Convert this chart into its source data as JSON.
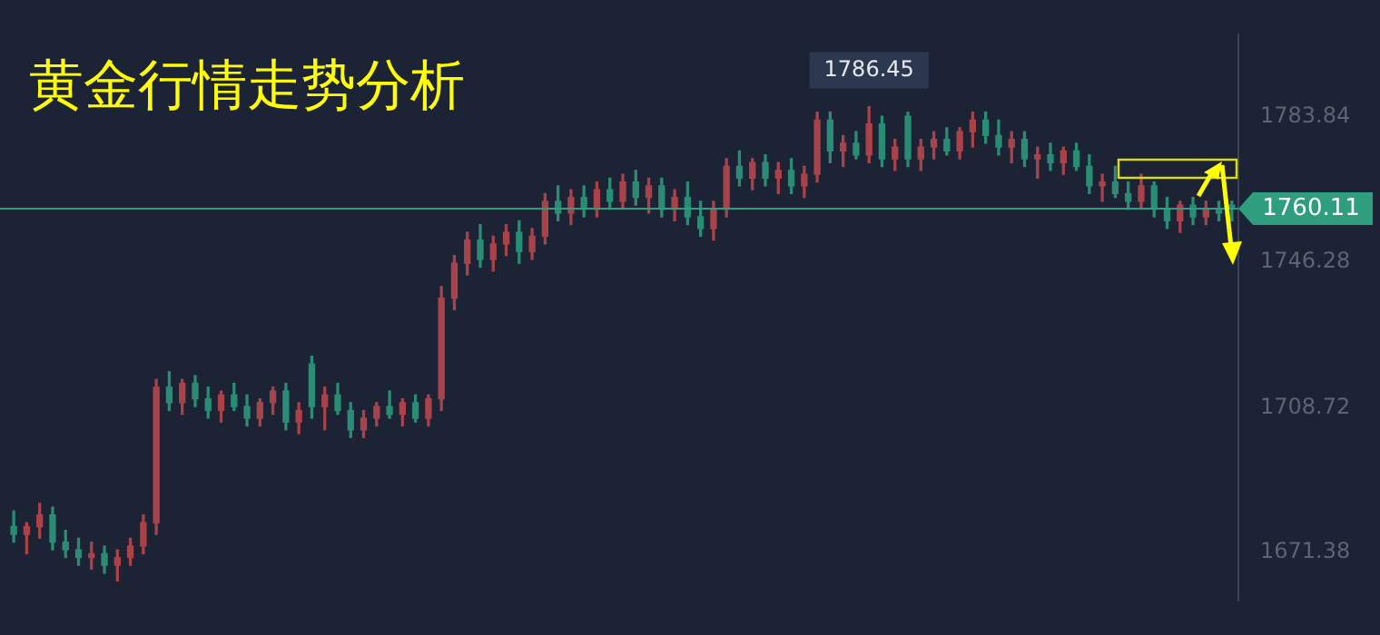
{
  "chart_data": {
    "type": "candlestick",
    "title": "黄金行情走势分析",
    "categories": [
      null,
      null,
      null,
      null,
      null,
      null,
      null,
      null,
      null,
      null,
      null,
      null,
      null,
      null,
      null,
      null,
      null,
      null,
      null,
      null,
      null,
      null,
      null,
      null,
      null,
      null,
      null,
      null,
      null,
      null,
      null,
      null,
      null,
      null,
      null,
      null,
      null,
      null,
      null,
      null,
      null,
      null,
      null,
      null,
      null,
      null,
      null,
      null,
      null,
      null,
      null,
      null,
      null,
      null,
      null,
      null,
      null,
      null,
      null,
      null,
      null,
      null,
      null,
      null,
      null,
      null,
      null,
      null,
      null,
      null,
      null,
      null,
      null,
      null,
      null,
      null,
      null,
      null,
      null,
      null,
      null,
      null,
      null,
      null,
      null,
      null,
      null,
      null,
      null,
      null,
      null,
      null,
      null,
      null,
      null
    ],
    "ohlc": [
      [
        1678,
        1682,
        1674,
        1676
      ],
      [
        1676,
        1679,
        1671,
        1678
      ],
      [
        1678,
        1684,
        1675,
        1681
      ],
      [
        1681,
        1683,
        1672,
        1674
      ],
      [
        1674,
        1677,
        1670,
        1672
      ],
      [
        1672,
        1675,
        1668,
        1670
      ],
      [
        1670,
        1674,
        1667,
        1671
      ],
      [
        1671,
        1673,
        1666,
        1668
      ],
      [
        1668,
        1672,
        1664,
        1670
      ],
      [
        1670,
        1675,
        1668,
        1673
      ],
      [
        1673,
        1681,
        1671,
        1679
      ],
      [
        1679,
        1716,
        1676,
        1714
      ],
      [
        1714,
        1718,
        1708,
        1710
      ],
      [
        1710,
        1716,
        1707,
        1715
      ],
      [
        1715,
        1717,
        1709,
        1711
      ],
      [
        1711,
        1714,
        1706,
        1708
      ],
      [
        1708,
        1713,
        1705,
        1712
      ],
      [
        1712,
        1715,
        1708,
        1709
      ],
      [
        1709,
        1712,
        1704,
        1706
      ],
      [
        1706,
        1711,
        1704,
        1710
      ],
      [
        1710,
        1714,
        1707,
        1713
      ],
      [
        1713,
        1715,
        1703,
        1705
      ],
      [
        1705,
        1710,
        1702,
        1708
      ],
      [
        1720,
        1722,
        1706,
        1709
      ],
      [
        1709,
        1714,
        1703,
        1712
      ],
      [
        1712,
        1715,
        1707,
        1708
      ],
      [
        1708,
        1710,
        1701,
        1703
      ],
      [
        1703,
        1708,
        1701,
        1706
      ],
      [
        1706,
        1710,
        1704,
        1709
      ],
      [
        1709,
        1713,
        1706,
        1707
      ],
      [
        1707,
        1711,
        1704,
        1710
      ],
      [
        1710,
        1712,
        1705,
        1706
      ],
      [
        1706,
        1712,
        1704,
        1711
      ],
      [
        1711,
        1740,
        1708,
        1737
      ],
      [
        1737,
        1748,
        1734,
        1746
      ],
      [
        1746,
        1754,
        1743,
        1752
      ],
      [
        1752,
        1756,
        1745,
        1747
      ],
      [
        1747,
        1753,
        1744,
        1751
      ],
      [
        1751,
        1756,
        1748,
        1754
      ],
      [
        1754,
        1757,
        1746,
        1749
      ],
      [
        1749,
        1755,
        1747,
        1753
      ],
      [
        1753,
        1764,
        1751,
        1762
      ],
      [
        1762,
        1766,
        1757,
        1759
      ],
      [
        1759,
        1765,
        1756,
        1763
      ],
      [
        1763,
        1766,
        1758,
        1760
      ],
      [
        1760,
        1767,
        1758,
        1765
      ],
      [
        1765,
        1768,
        1760,
        1762
      ],
      [
        1762,
        1769,
        1760,
        1767
      ],
      [
        1767,
        1770,
        1761,
        1763
      ],
      [
        1763,
        1768,
        1759,
        1766
      ],
      [
        1766,
        1768,
        1758,
        1760
      ],
      [
        1760,
        1765,
        1757,
        1763
      ],
      [
        1763,
        1767,
        1756,
        1758
      ],
      [
        1758,
        1762,
        1753,
        1755
      ],
      [
        1755,
        1762,
        1752,
        1760
      ],
      [
        1760,
        1773,
        1758,
        1771
      ],
      [
        1771,
        1775,
        1766,
        1768
      ],
      [
        1768,
        1773,
        1765,
        1772
      ],
      [
        1772,
        1774,
        1766,
        1768
      ],
      [
        1768,
        1772,
        1764,
        1770
      ],
      [
        1770,
        1773,
        1764,
        1766
      ],
      [
        1766,
        1771,
        1763,
        1769
      ],
      [
        1769,
        1785,
        1767,
        1783
      ],
      [
        1783,
        1785,
        1772,
        1775
      ],
      [
        1775,
        1779,
        1771,
        1777
      ],
      [
        1777,
        1780,
        1773,
        1774
      ],
      [
        1774,
        1786.45,
        1772,
        1782
      ],
      [
        1782,
        1784,
        1771,
        1773
      ],
      [
        1773,
        1778,
        1770,
        1776
      ],
      [
        1784,
        1785,
        1771,
        1773
      ],
      [
        1773,
        1778,
        1770,
        1776
      ],
      [
        1776,
        1780,
        1773,
        1778
      ],
      [
        1778,
        1781,
        1774,
        1775
      ],
      [
        1775,
        1781,
        1773,
        1780
      ],
      [
        1780,
        1785,
        1776,
        1783
      ],
      [
        1783,
        1785,
        1777,
        1779
      ],
      [
        1779,
        1783,
        1774,
        1776
      ],
      [
        1776,
        1780,
        1772,
        1778
      ],
      [
        1778,
        1780,
        1771,
        1773
      ],
      [
        1773,
        1776,
        1768,
        1774
      ],
      [
        1774,
        1777,
        1770,
        1772
      ],
      [
        1772,
        1776,
        1769,
        1775
      ],
      [
        1775,
        1777,
        1770,
        1771
      ],
      [
        1771,
        1774,
        1764,
        1766
      ],
      [
        1766,
        1769,
        1762,
        1767
      ],
      [
        1767,
        1771,
        1763,
        1764
      ],
      [
        1764,
        1767,
        1760,
        1762
      ],
      [
        1762,
        1769,
        1760,
        1766
      ],
      [
        1766,
        1767,
        1758,
        1760
      ],
      [
        1760,
        1763,
        1755,
        1757
      ],
      [
        1757,
        1762,
        1754,
        1761
      ],
      [
        1761,
        1763,
        1756,
        1758
      ],
      [
        1758,
        1762,
        1756,
        1760
      ],
      [
        1760,
        1762,
        1757,
        1759
      ],
      [
        1761,
        1762,
        1757,
        1760.11
      ]
    ],
    "colors": [
      "#2a8c74",
      "#a8434a",
      "#a8434a",
      "#2a8c74",
      "#2a8c74",
      "#2a8c74",
      "#a8434a",
      "#2a8c74",
      "#a8434a",
      "#a8434a",
      "#a8434a",
      "#a8434a",
      "#2a8c74",
      "#a8434a",
      "#2a8c74",
      "#2a8c74",
      "#a8434a",
      "#2a8c74",
      "#2a8c74",
      "#a8434a",
      "#a8434a",
      "#2a8c74",
      "#a8434a",
      "#2a8c74",
      "#a8434a",
      "#2a8c74",
      "#2a8c74",
      "#a8434a",
      "#a8434a",
      "#2a8c74",
      "#a8434a",
      "#2a8c74",
      "#a8434a",
      "#a8434a",
      "#a8434a",
      "#a8434a",
      "#2a8c74",
      "#a8434a",
      "#a8434a",
      "#2a8c74",
      "#a8434a",
      "#a8434a",
      "#2a8c74",
      "#a8434a",
      "#2a8c74",
      "#a8434a",
      "#2a8c74",
      "#a8434a",
      "#2a8c74",
      "#a8434a",
      "#2a8c74",
      "#a8434a",
      "#2a8c74",
      "#2a8c74",
      "#a8434a",
      "#a8434a",
      "#2a8c74",
      "#a8434a",
      "#2a8c74",
      "#a8434a",
      "#2a8c74",
      "#a8434a",
      "#a8434a",
      "#2a8c74",
      "#a8434a",
      "#2a8c74",
      "#a8434a",
      "#2a8c74",
      "#a8434a",
      "#2a8c74",
      "#a8434a",
      "#a8434a",
      "#2a8c74",
      "#a8434a",
      "#a8434a",
      "#2a8c74",
      "#2a8c74",
      "#a8434a",
      "#2a8c74",
      "#a8434a",
      "#2a8c74",
      "#a8434a",
      "#2a8c74",
      "#2a8c74",
      "#a8434a",
      "#2a8c74",
      "#2a8c74",
      "#a8434a",
      "#2a8c74",
      "#2a8c74",
      "#a8434a",
      "#2a8c74",
      "#a8434a",
      "#2a8c74",
      "#2a8c74"
    ],
    "ylim": [
      1659,
      1805
    ],
    "yticks": [
      1671.38,
      1708.72,
      1746.28,
      1783.84
    ],
    "tick_labels": "y",
    "grid": false,
    "legend": false,
    "ref_lines": [
      {
        "axis": "y",
        "value": 1760.11,
        "label": "1760.11",
        "color": "#2e9e7e"
      }
    ],
    "annotations": [
      {
        "text": "1786.45",
        "y": 1786.45
      }
    ]
  }
}
